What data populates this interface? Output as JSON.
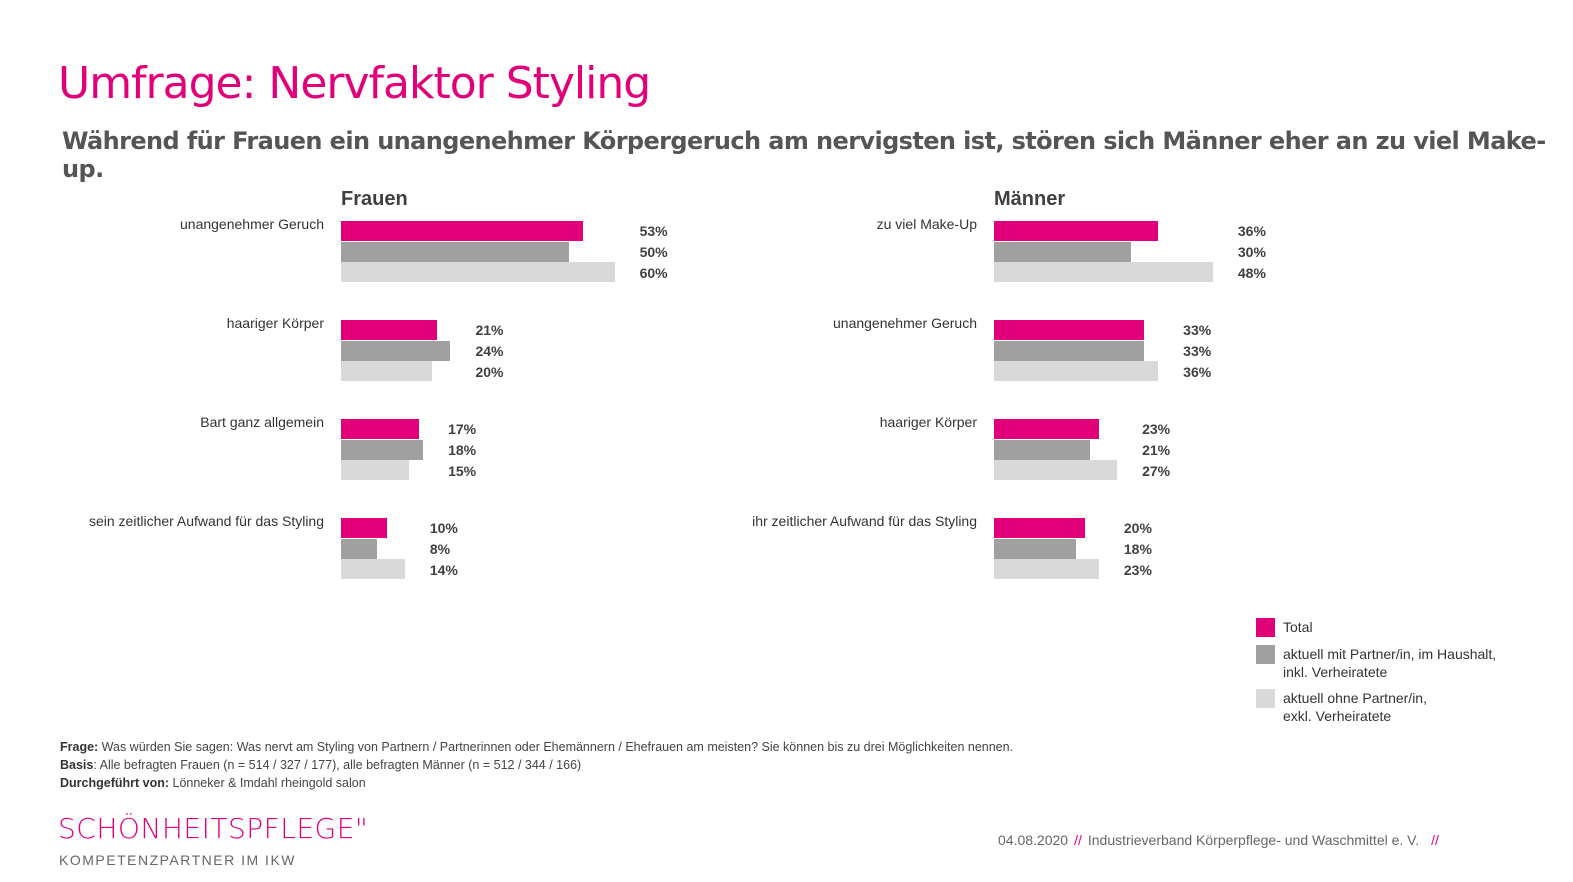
{
  "title": "Umfrage: Nervfaktor Styling",
  "subtitle": "Während für Frauen ein unangenehmer Körpergeruch am nervigsten ist, stören sich Männer eher an zu viel Make-up.",
  "colors": {
    "total": "#e2007a",
    "with_partner": "#a0a0a0",
    "without_partner": "#d9d9d9"
  },
  "chart_data": [
    {
      "type": "bar",
      "orientation": "horizontal",
      "title": "Frauen",
      "categories": [
        "unangenehmer Geruch",
        "haariger Körper",
        "Bart ganz allgemein",
        "sein zeitlicher Aufwand für das Styling"
      ],
      "series": [
        {
          "name": "Total",
          "values": [
            53,
            21,
            17,
            10
          ]
        },
        {
          "name": "aktuell mit Partner/in, im Haushalt, inkl. Verheiratete",
          "values": [
            50,
            24,
            18,
            8
          ]
        },
        {
          "name": "aktuell ohne Partner/in, exkl. Verheiratete",
          "values": [
            60,
            20,
            15,
            14
          ]
        }
      ],
      "unit": "%"
    },
    {
      "type": "bar",
      "orientation": "horizontal",
      "title": "Männer",
      "categories": [
        "zu viel Make-Up",
        "unangenehmer Geruch",
        "haariger Körper",
        "ihr zeitlicher Aufwand für das Styling"
      ],
      "series": [
        {
          "name": "Total",
          "values": [
            36,
            33,
            23,
            20
          ]
        },
        {
          "name": "aktuell mit Partner/in, im Haushalt, inkl. Verheiratete",
          "values": [
            30,
            33,
            21,
            18
          ]
        },
        {
          "name": "aktuell ohne Partner/in, exkl. Verheiratete",
          "values": [
            48,
            36,
            27,
            23
          ]
        }
      ],
      "unit": "%"
    }
  ],
  "legend": {
    "total": "Total",
    "with_partner_1": "aktuell mit Partner/in, im Haushalt,",
    "with_partner_2": "inkl. Verheiratete",
    "without_partner_1": "aktuell ohne Partner/in,",
    "without_partner_2": "exkl. Verheiratete"
  },
  "notes": {
    "frage_label": "Frage:",
    "frage": " Was würden Sie sagen: Was nervt am Styling von Partnern / Partnerinnen oder Ehemännern / Ehefrauen am meisten? Sie können bis zu drei Möglichkeiten nennen.",
    "basis_label": "Basis",
    "basis": ": Alle befragten Frauen (n = 514 / 327 / 177), alle befragten Männer (n = 512 / 344 / 166)",
    "durch_label": "Durchgeführt von:",
    "durch": " Lönneker & Imdahl rheingold salon"
  },
  "logo": {
    "name": "SCHÖNHEITSPFLEGE\"",
    "sub": "KOMPETENZPARTNER IM IKW"
  },
  "footer": {
    "date": "04.08.2020",
    "sep": "//",
    "org": "Industrieverband Körperpflege- und Waschmittel e. V.",
    "sep2": "//"
  }
}
